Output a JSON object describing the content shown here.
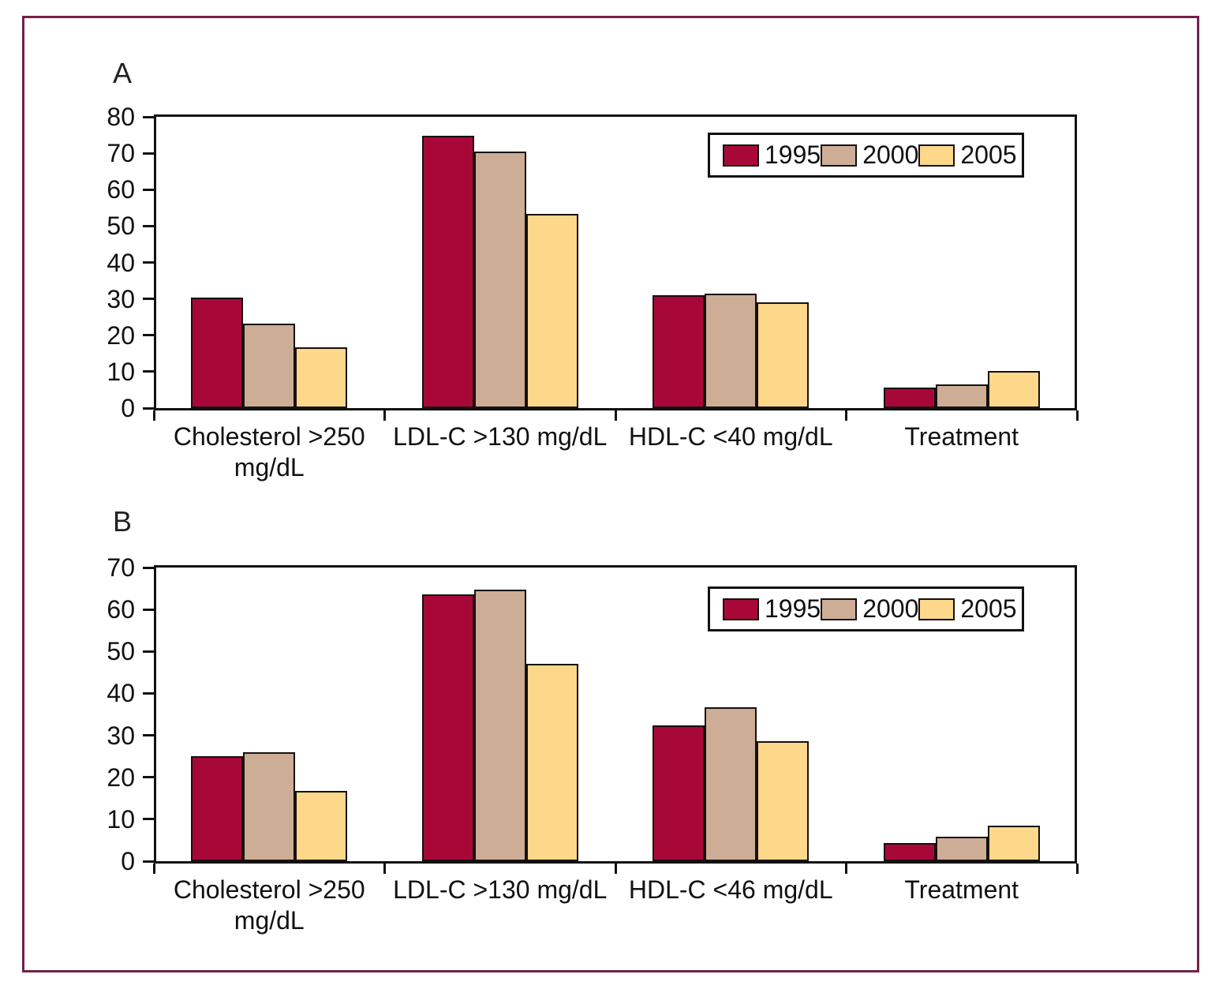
{
  "figure": {
    "frame_color": "#722148",
    "background_color": "#ffffff",
    "axis_color": "#111111"
  },
  "chart_data": [
    {
      "type": "bar",
      "panel_label": "A",
      "categories": [
        "Cholesterol >250\nmg/dL",
        "LDL-C >130 mg/dL",
        "HDL-C <40 mg/dL",
        "Treatment"
      ],
      "series": [
        {
          "name": "1995",
          "color": "#A80838",
          "values": [
            30.3,
            74.7,
            31.0,
            5.6
          ]
        },
        {
          "name": "2000",
          "color": "#CDAD95",
          "values": [
            23.3,
            70.4,
            31.5,
            6.5
          ]
        },
        {
          "name": "2005",
          "color": "#FDD78A",
          "values": [
            16.7,
            53.3,
            29.0,
            10.2
          ]
        }
      ],
      "ylim": [
        0,
        80
      ],
      "ytick_step": 10,
      "grid": false,
      "legend_position": "top-right",
      "legend_labels": [
        "1995",
        "2000",
        "2005"
      ]
    },
    {
      "type": "bar",
      "panel_label": "B",
      "categories": [
        "Cholesterol >250\nmg/dL",
        "LDL-C >130 mg/dL",
        "HDL-C <46 mg/dL",
        "Treatment"
      ],
      "series": [
        {
          "name": "1995",
          "color": "#A80838",
          "values": [
            25.1,
            63.6,
            32.3,
            4.4
          ]
        },
        {
          "name": "2000",
          "color": "#CDAD95",
          "values": [
            25.9,
            64.8,
            36.6,
            5.9
          ]
        },
        {
          "name": "2005",
          "color": "#FDD78A",
          "values": [
            16.8,
            47.0,
            28.6,
            8.4
          ]
        }
      ],
      "ylim": [
        0,
        70
      ],
      "ytick_step": 10,
      "grid": false,
      "legend_position": "top-right",
      "legend_labels": [
        "1995",
        "2000",
        "2005"
      ]
    }
  ]
}
